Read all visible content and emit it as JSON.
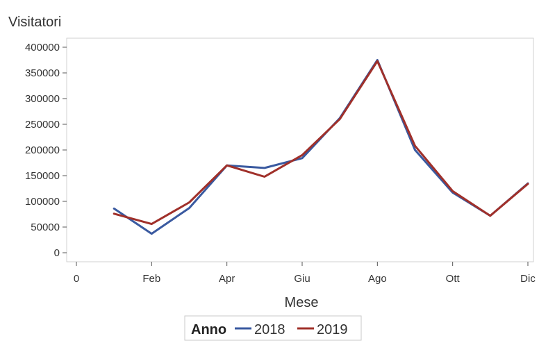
{
  "chart_data": {
    "type": "line",
    "title": "",
    "ylabel": "Visitatori",
    "xlabel": "Mese",
    "xlim": [
      0,
      12
    ],
    "ylim": [
      0,
      400000
    ],
    "x_ticks": [
      {
        "value": 0,
        "label": "0"
      },
      {
        "value": 2,
        "label": "Feb"
      },
      {
        "value": 4,
        "label": "Apr"
      },
      {
        "value": 6,
        "label": "Giu"
      },
      {
        "value": 8,
        "label": "Ago"
      },
      {
        "value": 10,
        "label": "Ott"
      },
      {
        "value": 12,
        "label": "Dic"
      }
    ],
    "y_ticks": [
      {
        "value": 0,
        "label": "0"
      },
      {
        "value": 50000,
        "label": "50000"
      },
      {
        "value": 100000,
        "label": "100000"
      },
      {
        "value": 150000,
        "label": "150000"
      },
      {
        "value": 200000,
        "label": "200000"
      },
      {
        "value": 250000,
        "label": "250000"
      },
      {
        "value": 300000,
        "label": "300000"
      },
      {
        "value": 350000,
        "label": "350000"
      },
      {
        "value": 400000,
        "label": "400000"
      }
    ],
    "x": [
      1,
      2,
      3,
      4,
      5,
      6,
      7,
      8,
      9,
      10,
      11,
      12
    ],
    "grid": false,
    "legend": {
      "title": "Anno",
      "placement": "bottom"
    },
    "series": [
      {
        "name": "2018",
        "color": "#3a5aa0",
        "values": [
          86000,
          37000,
          87000,
          170000,
          165000,
          184000,
          262000,
          375000,
          200000,
          117000,
          72000,
          135000
        ]
      },
      {
        "name": "2019",
        "color": "#a0302a",
        "values": [
          76000,
          56000,
          98000,
          170000,
          148000,
          190000,
          260000,
          373000,
          208000,
          120000,
          72000,
          134000
        ]
      }
    ]
  }
}
